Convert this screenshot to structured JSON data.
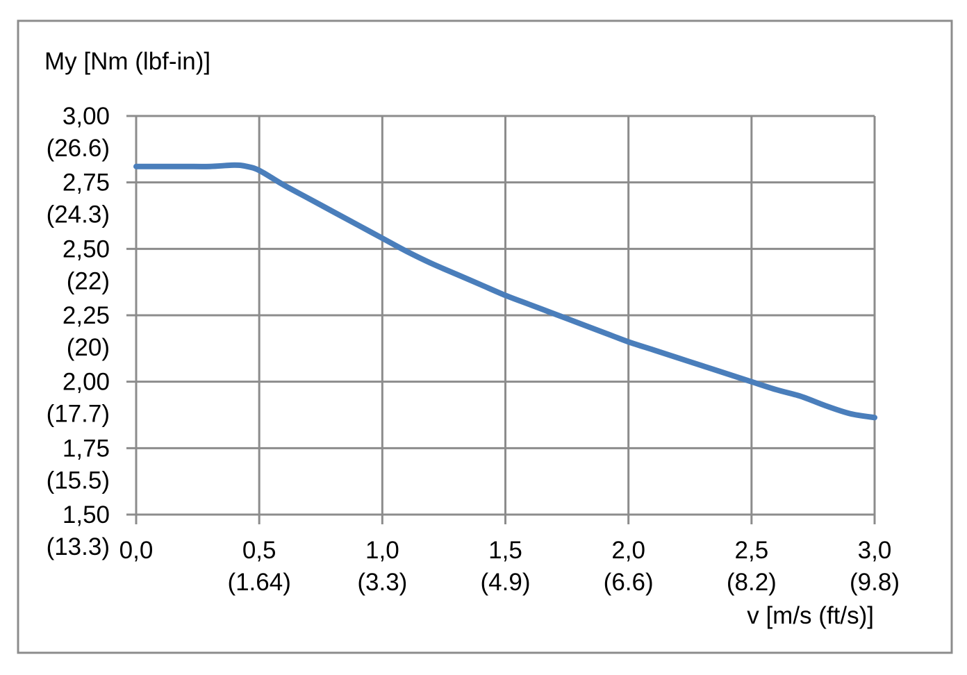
{
  "chart_data": {
    "type": "line",
    "ylabel": "My [Nm (lbf-in)]",
    "xlabel": "v [m/s (ft/s)]",
    "xlim": [
      0,
      3
    ],
    "ylim": [
      1.5,
      3.0
    ],
    "grid": true,
    "x_ticks": [
      {
        "value": 0.0,
        "label": "0,0",
        "sublabel": ""
      },
      {
        "value": 0.5,
        "label": "0,5",
        "sublabel": "(1.64)"
      },
      {
        "value": 1.0,
        "label": "1,0",
        "sublabel": "(3.3)"
      },
      {
        "value": 1.5,
        "label": "1,5",
        "sublabel": "(4.9)"
      },
      {
        "value": 2.0,
        "label": "2,0",
        "sublabel": "(6.6)"
      },
      {
        "value": 2.5,
        "label": "2,5",
        "sublabel": "(8.2)"
      },
      {
        "value": 3.0,
        "label": "3,0",
        "sublabel": "(9.8)"
      }
    ],
    "y_ticks": [
      {
        "value": 3.0,
        "label": "3,00",
        "sublabel": "(26.6)"
      },
      {
        "value": 2.75,
        "label": "2,75",
        "sublabel": "(24.3)"
      },
      {
        "value": 2.5,
        "label": "2,50",
        "sublabel": "(22)"
      },
      {
        "value": 2.25,
        "label": "2,25",
        "sublabel": "(20)"
      },
      {
        "value": 2.0,
        "label": "2,00",
        "sublabel": "(17.7)"
      },
      {
        "value": 1.75,
        "label": "1,75",
        "sublabel": "(15.5)"
      },
      {
        "value": 1.5,
        "label": "1,50",
        "sublabel": "(13.3)"
      }
    ],
    "series": [
      {
        "color": "#4A7EBB",
        "x": [
          0.0,
          0.1,
          0.2,
          0.3,
          0.4,
          0.45,
          0.5,
          0.6,
          0.7,
          0.8,
          0.9,
          1.0,
          1.1,
          1.2,
          1.3,
          1.4,
          1.5,
          1.6,
          1.7,
          1.8,
          1.9,
          2.0,
          2.1,
          2.2,
          2.3,
          2.4,
          2.5,
          2.6,
          2.7,
          2.8,
          2.9,
          3.0
        ],
        "y": [
          2.81,
          2.81,
          2.81,
          2.81,
          2.815,
          2.81,
          2.795,
          2.74,
          2.69,
          2.64,
          2.59,
          2.54,
          2.49,
          2.445,
          2.405,
          2.365,
          2.325,
          2.29,
          2.255,
          2.22,
          2.185,
          2.15,
          2.12,
          2.09,
          2.06,
          2.03,
          2.0,
          1.97,
          1.945,
          1.91,
          1.88,
          1.865
        ]
      }
    ]
  }
}
